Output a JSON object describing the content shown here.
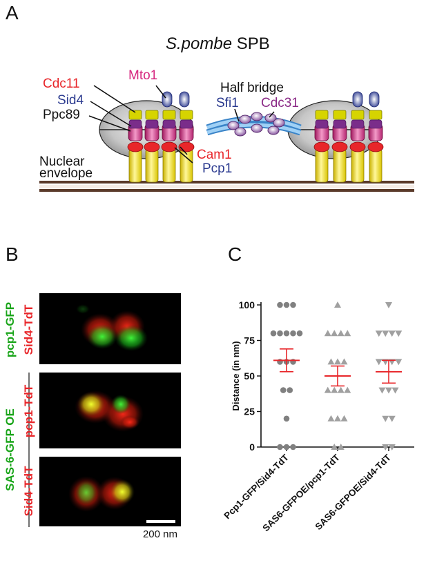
{
  "panels": {
    "a": "A",
    "b": "B",
    "c": "C"
  },
  "panel_a": {
    "title_italic": "S.pombe",
    "title_rest": " SPB",
    "labels": {
      "cdc11": "Cdc11",
      "mto1": "Mto1",
      "sid4": "Sid4",
      "ppc89": "Ppc89",
      "half_bridge": "Half bridge",
      "sfi1": "Sfi1",
      "cdc31": "Cdc31",
      "cam1": "Cam1",
      "pcp1": "Pcp1",
      "nuclear": "Nuclear",
      "envelope": "envelope"
    },
    "colors": {
      "red_label": "#e8262a",
      "blue_label": "#2b3a8f",
      "magenta_label": "#d6257e",
      "purple_label": "#8b2a86"
    }
  },
  "panel_b": {
    "left_labels": {
      "row1_green": "pcp1-GFP",
      "group_green": "SAS-6-GFP OE"
    },
    "row_labels": [
      "Sid4-TdT",
      "pcp1-TdT",
      "Sid4-TdT"
    ],
    "scale_bar": "200 nm"
  },
  "chart_data": {
    "type": "scatter",
    "ylabel": "Distance (in nm)",
    "xlabel": "",
    "ylim": [
      0,
      100
    ],
    "yticks": [
      0,
      25,
      50,
      75,
      100
    ],
    "categories": [
      "Pcp1-GFP/Sid4-TdT",
      "SAS6-GFPOE/pcp1-TdT",
      "SAS6-GFPOE/Sid4-TdT"
    ],
    "series": [
      {
        "marker": "circle",
        "color": "#808080",
        "points": [
          {
            "y": 100,
            "n": 3
          },
          {
            "y": 80,
            "n": 5
          },
          {
            "y": 60,
            "n": 3
          },
          {
            "y": 40,
            "n": 2
          },
          {
            "y": 20,
            "n": 1
          },
          {
            "y": 0,
            "n": 3
          }
        ],
        "mean": 61,
        "sem": 8
      },
      {
        "marker": "triangle-up",
        "color": "#a0a0a0",
        "points": [
          {
            "y": 100,
            "n": 1
          },
          {
            "y": 80,
            "n": 4
          },
          {
            "y": 60,
            "n": 3
          },
          {
            "y": 40,
            "n": 4
          },
          {
            "y": 20,
            "n": 3
          },
          {
            "y": 0,
            "n": 2
          }
        ],
        "mean": 50,
        "sem": 7
      },
      {
        "marker": "triangle-down",
        "color": "#a0a0a0",
        "points": [
          {
            "y": 100,
            "n": 1
          },
          {
            "y": 80,
            "n": 4
          },
          {
            "y": 60,
            "n": 4
          },
          {
            "y": 40,
            "n": 3
          },
          {
            "y": 20,
            "n": 2
          },
          {
            "y": 0,
            "n": 2
          }
        ],
        "mean": 53,
        "sem": 8
      }
    ],
    "error_color": "#e8262a"
  }
}
